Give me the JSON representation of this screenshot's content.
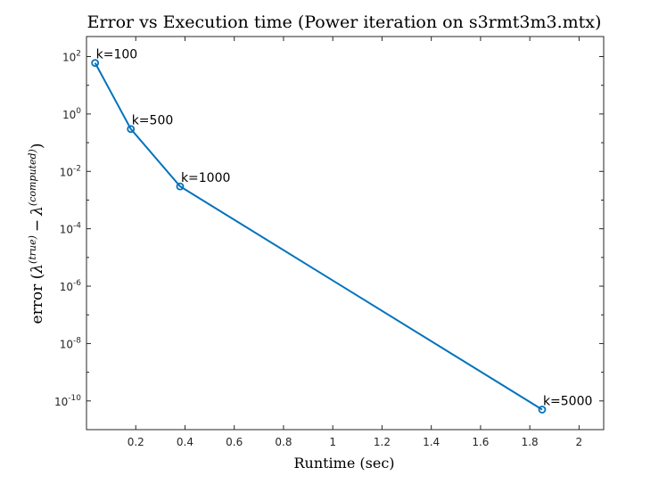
{
  "chart_data": {
    "type": "line",
    "title": "Error vs Execution time (Power iteration on s3rmt3m3.mtx)",
    "xlabel": "Runtime (sec)",
    "ylabel_prefix": "error (",
    "ylabel_lambda": "λ",
    "ylabel_sup_true": "(true)",
    "ylabel_minus": "−",
    "ylabel_sup_computed": "(computed)",
    "ylabel_suffix": ")",
    "x_scale": "linear",
    "y_scale": "log",
    "xlim": [
      0.0,
      2.1
    ],
    "ylim": [
      1e-11,
      500
    ],
    "x_ticks": [
      0.2,
      0.4,
      0.6,
      0.8,
      1,
      1.2,
      1.4,
      1.6,
      1.8,
      2
    ],
    "x_tick_labels": [
      "0.2",
      "0.4",
      "0.6",
      "0.8",
      "1",
      "1.2",
      "1.4",
      "1.6",
      "1.8",
      "2"
    ],
    "y_tick_exponents": [
      -10,
      -8,
      -6,
      -4,
      -2,
      0,
      2
    ],
    "y_tick_base": "10",
    "grid": false,
    "color": "#0072BD",
    "marker": "circle",
    "x": [
      0.035,
      0.18,
      0.38,
      1.85
    ],
    "y": [
      60,
      0.3,
      0.003,
      5e-11
    ],
    "point_labels": [
      "k=100",
      "k=500",
      "k=1000",
      "k=5000"
    ]
  }
}
